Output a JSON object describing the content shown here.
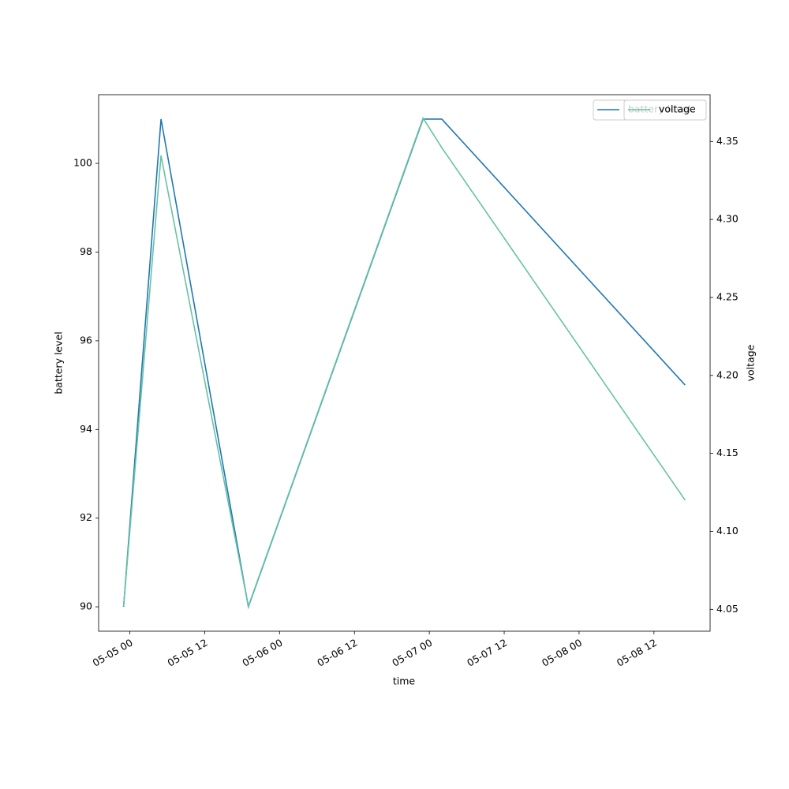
{
  "chart_data": {
    "type": "line",
    "x_label": "time",
    "y_label": "battery level",
    "y2_label": "voltage",
    "x": [
      "05-04 23",
      "05-05 05",
      "05-05 19",
      "05-06 23",
      "05-07 02",
      "05-08 17"
    ],
    "series": [
      {
        "name": "battery level",
        "color": "#1f77b4",
        "values": [
          90,
          101,
          90,
          101,
          101,
          95
        ]
      },
      {
        "name": "voltage",
        "color": "#66c2a5",
        "axis": "y2",
        "values": [
          4.052,
          4.341,
          4.052,
          4.365,
          4.346,
          4.12
        ]
      }
    ],
    "xlim": [
      "05-04 19",
      "05-08 21"
    ],
    "xticks": [
      "05-05 00",
      "05-05 12",
      "05-06 00",
      "05-06 12",
      "05-07 00",
      "05-07 12",
      "05-08 00",
      "05-08 12"
    ],
    "ylim": [
      89.45,
      101.55
    ],
    "yticks": [
      90,
      92,
      94,
      96,
      98,
      100
    ],
    "y2lim": [
      4.036,
      4.38
    ],
    "y2ticks": [
      4.05,
      {
        "value": 4.1,
        "label": "4.10"
      },
      4.15,
      {
        "value": 4.2,
        "label": "4.20"
      },
      4.25,
      {
        "value": 4.3,
        "label": "4.30"
      },
      4.35
    ],
    "legend": "upper right",
    "grid": false
  }
}
